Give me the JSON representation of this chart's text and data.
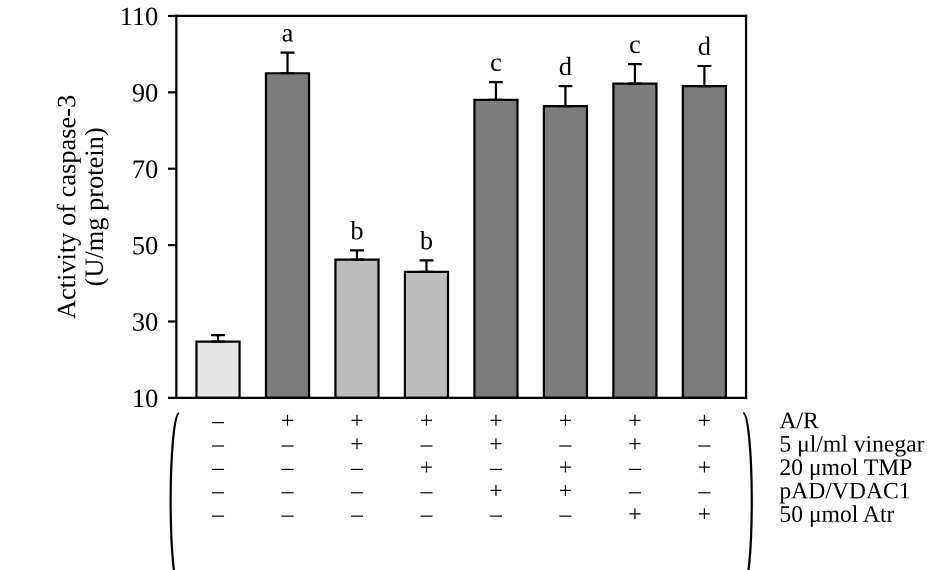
{
  "chart_data": {
    "type": "bar",
    "ylabel": "Activity of caspase-3\n(U/mg protein)",
    "categories": [
      "–\n–\n–\n–\n–",
      "+\n–\n–\n–\n–",
      "+\n+\n–\n–\n–",
      "+\n–\n+\n–\n–",
      "+\n+\n–\n+\n–",
      "+\n–\n+\n+\n–",
      "+\n+\n–\n–\n+",
      "+\n–\n+\n–\n+"
    ],
    "values": [
      24.7,
      95,
      46.2,
      43,
      88,
      86.4,
      92.3,
      91.6
    ],
    "errors": [
      1.7,
      5.4,
      2.4,
      3,
      4.7,
      5.2,
      5.1,
      5.3
    ],
    "value_labels": [
      null,
      "a",
      "b",
      "b",
      "c",
      "d",
      "c",
      "d"
    ],
    "colors": [
      "#e4e4e4",
      "#7c7c7c",
      "#bcbcbc",
      "#bcbcbc",
      "#7c7c7c",
      "#7c7c7c",
      "#7c7c7c",
      "#7c7c7c"
    ],
    "ylim": [
      10,
      110
    ],
    "yticks": [
      10,
      30,
      50,
      70,
      90,
      110
    ],
    "annotations": [
      "A/R",
      "5 μl/ml vinegar",
      "20 μmol TMP",
      "pAD/VDAC1",
      "50 μmol Atr"
    ],
    "grid": false,
    "legend": false
  }
}
